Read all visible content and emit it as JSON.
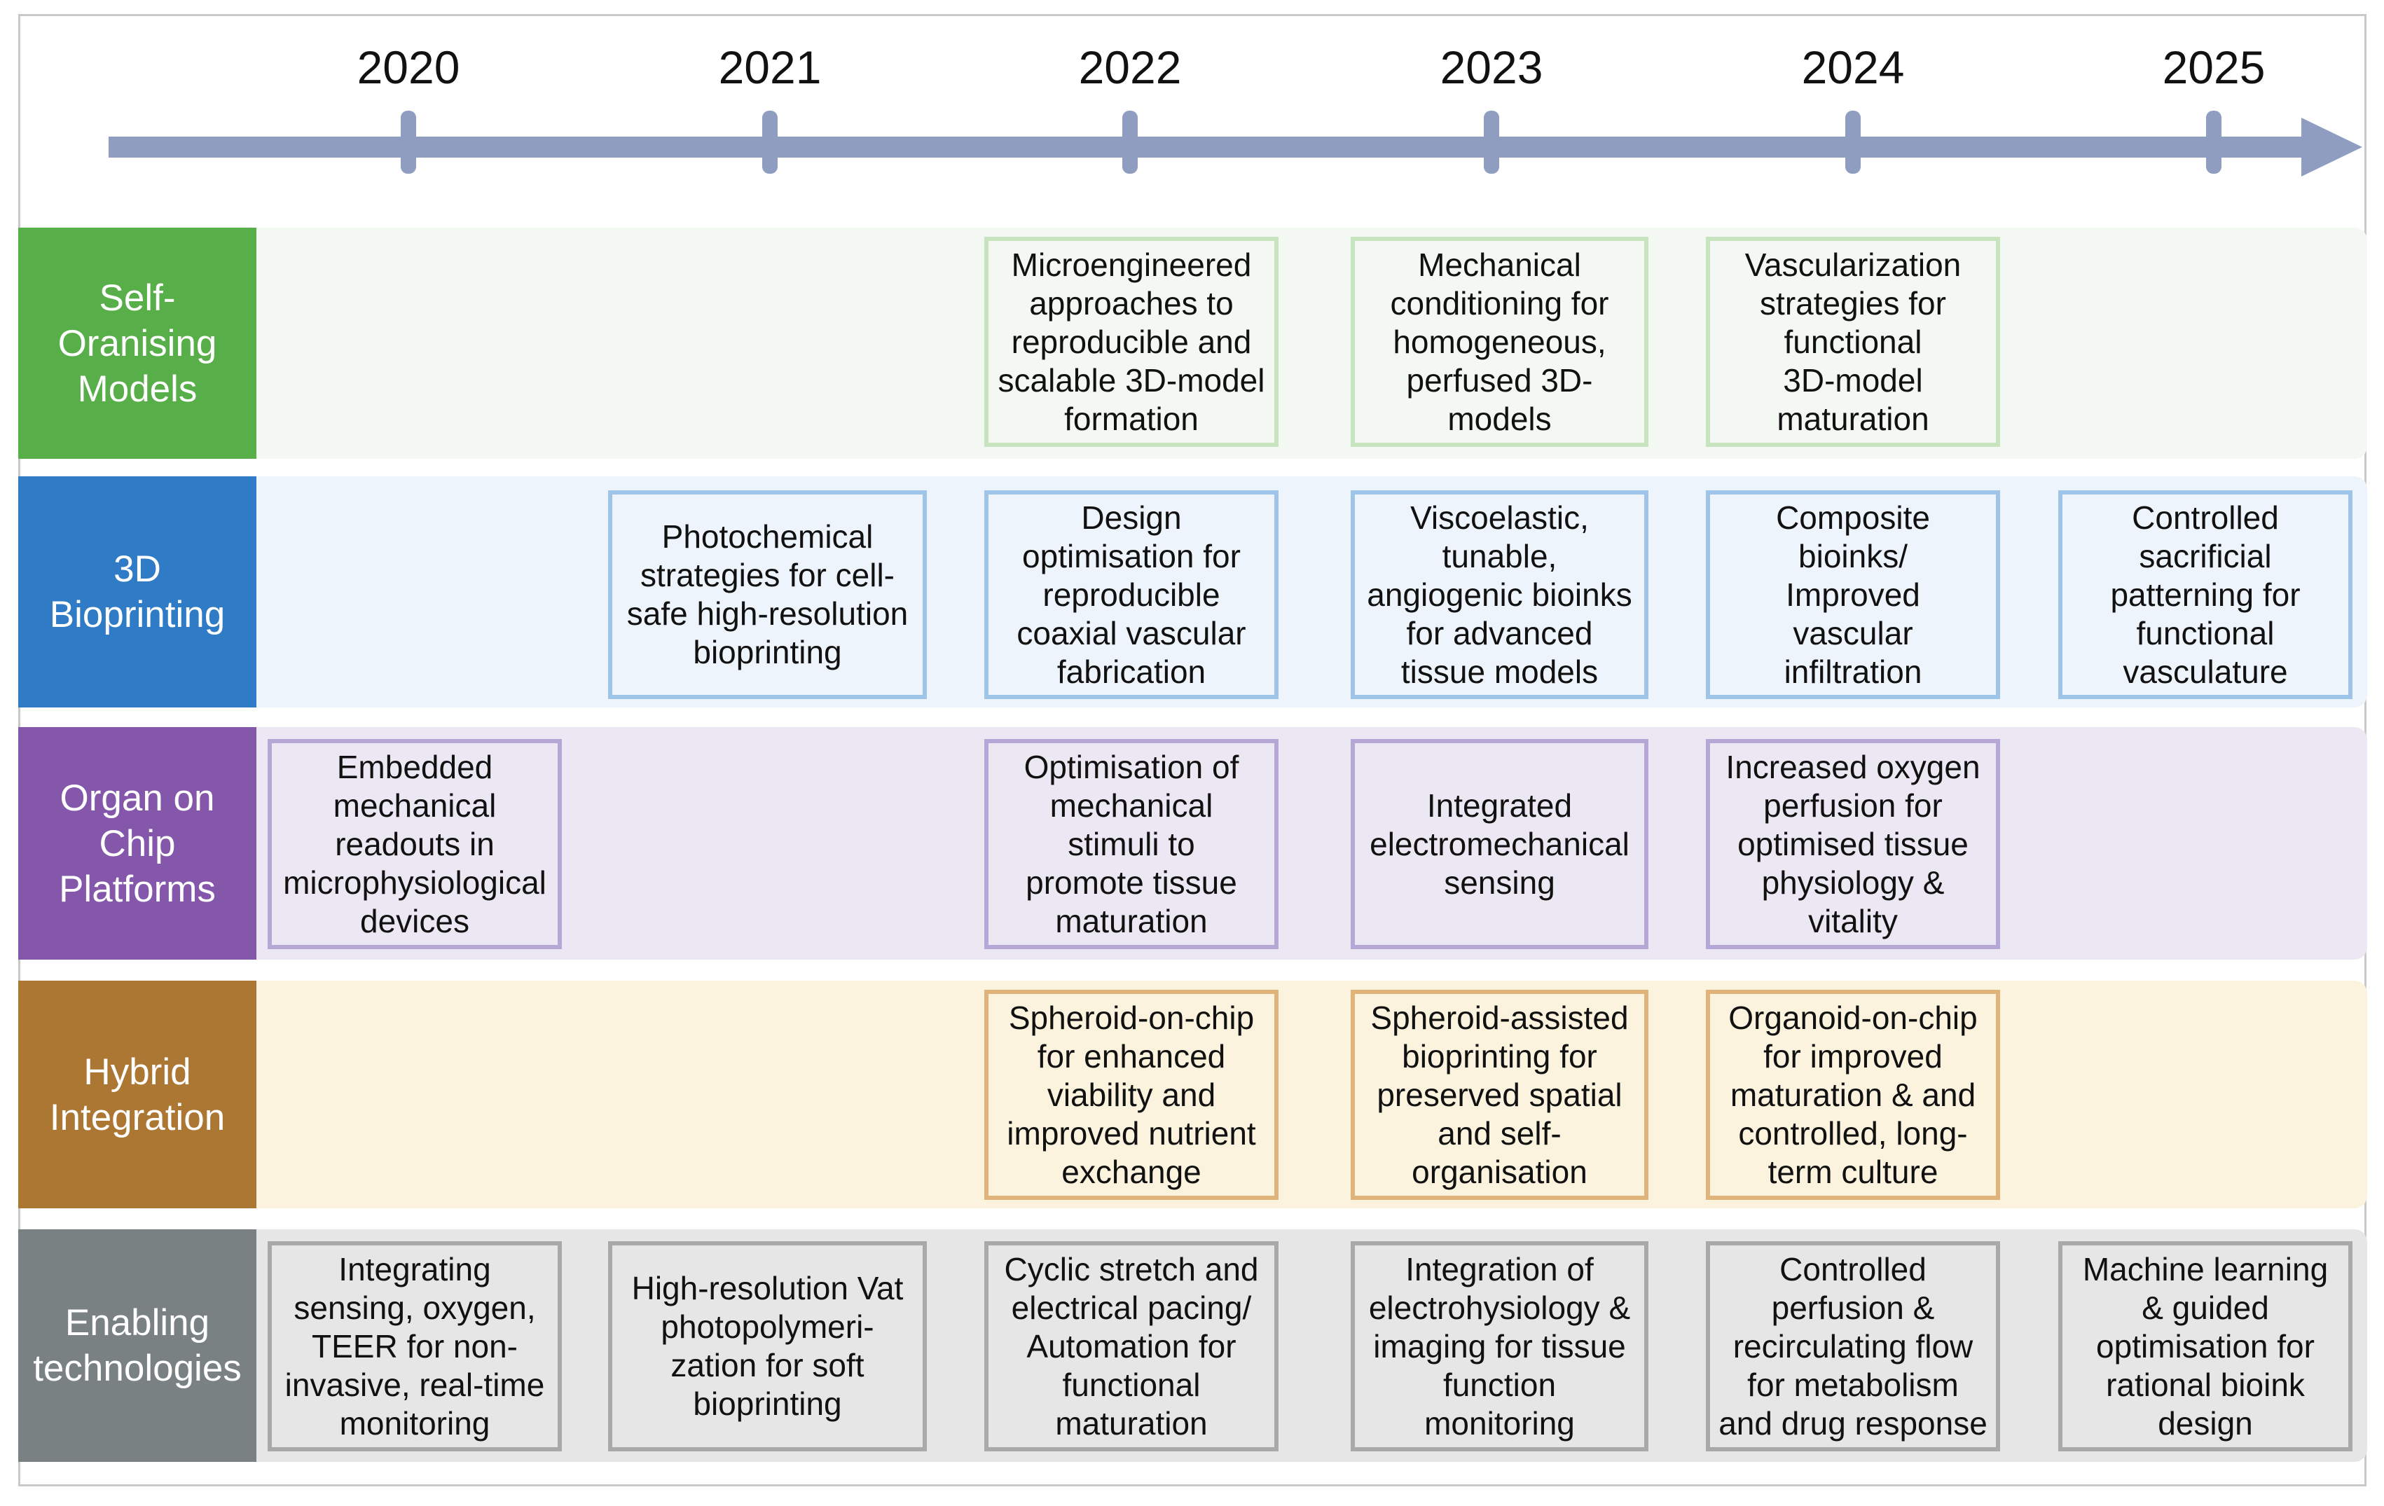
{
  "years": [
    "2020",
    "2021",
    "2022",
    "2023",
    "2024",
    "2025"
  ],
  "colors": {
    "arrow": "#8e9dc0",
    "frame": "#c9c9c9",
    "self_oranising": {
      "label_bg": "#58ae48",
      "band_bg": "#f4f8f2",
      "box_border": "#c8e4be"
    },
    "bioprinting": {
      "label_bg": "#2f7bc6",
      "band_bg": "#eef4fb",
      "box_border": "#9ec5e8"
    },
    "organ_on_chip": {
      "label_bg": "#8457ab",
      "band_bg": "#ece8f3",
      "box_border": "#b5a8d6"
    },
    "hybrid": {
      "label_bg": "#ab7732",
      "band_bg": "#fbf3dd",
      "box_border": "#e0b37a"
    },
    "enabling": {
      "label_bg": "#7a8183",
      "band_bg": "#e6e6e6",
      "box_border": "#a9a9a9"
    }
  },
  "rows": [
    {
      "id": "self-oranising",
      "label": "Self-\nOranising\nModels",
      "items": [
        {
          "year": "2022",
          "text": "Microengineered\napproaches to\nreproducible and\nscalable 3D-model\nformation"
        },
        {
          "year": "2023",
          "text": "Mechanical\nconditioning for\nhomogeneous,\nperfused 3D-\nmodels"
        },
        {
          "year": "2024",
          "text": "Vascularization\nstrategies for\nfunctional\n3D-model\nmaturation"
        }
      ]
    },
    {
      "id": "bioprinting",
      "label": "3D\nBioprinting",
      "items": [
        {
          "year": "2021",
          "text": "Photochemical\nstrategies for cell-\nsafe high-resolution\nbioprinting"
        },
        {
          "year": "2022",
          "text": "Design\noptimisation for\nreproducible\ncoaxial vascular\nfabrication"
        },
        {
          "year": "2023",
          "text": "Viscoelastic,\ntunable,\nangiogenic bioinks\nfor advanced\ntissue models"
        },
        {
          "year": "2024",
          "text": "Composite\nbioinks/\nImproved\nvascular\ninfiltration"
        },
        {
          "year": "2025",
          "text": "Controlled\nsacrificial\npatterning for\nfunctional\nvasculature"
        }
      ]
    },
    {
      "id": "organ-on-chip",
      "label": "Organ on\nChip\nPlatforms",
      "items": [
        {
          "year": "2020",
          "text": "Embedded\nmechanical\nreadouts in\nmicrophysiological\ndevices"
        },
        {
          "year": "2022",
          "text": "Optimisation of\nmechanical\nstimuli to\npromote tissue\nmaturation"
        },
        {
          "year": "2023",
          "text": "Integrated\nelectromechanical\nsensing"
        },
        {
          "year": "2024",
          "text": "Increased oxygen\nperfusion for\noptimised tissue\nphysiology &\nvitality"
        }
      ]
    },
    {
      "id": "hybrid",
      "label": "Hybrid\nIntegration",
      "items": [
        {
          "year": "2022",
          "text": "Spheroid-on-chip\nfor enhanced\nviability and\nimproved nutrient\nexchange"
        },
        {
          "year": "2023",
          "text": "Spheroid-assisted\nbioprinting for\npreserved spatial\nand self-\norganisation"
        },
        {
          "year": "2024",
          "text": "Organoid-on-chip\nfor improved\nmaturation & and\ncontrolled, long-\nterm culture"
        }
      ]
    },
    {
      "id": "enabling",
      "label": "Enabling\ntechnologies",
      "items": [
        {
          "year": "2020",
          "text": "Integrating\nsensing, oxygen,\nTEER for non-\ninvasive, real-time\nmonitoring"
        },
        {
          "year": "2021",
          "text": "High-resolution Vat\nphotopolymeri-\nzation for soft\nbioprinting"
        },
        {
          "year": "2022",
          "text": "Cyclic stretch and\nelectrical pacing/\nAutomation for\nfunctional\nmaturation"
        },
        {
          "year": "2023",
          "text": "Integration of\nelectrohysiology &\nimaging for tissue\nfunction\nmonitoring"
        },
        {
          "year": "2024",
          "text": "Controlled\nperfusion &\nrecirculating flow\nfor metabolism\nand drug response"
        },
        {
          "year": "2025",
          "text": "Machine learning\n& guided\noptimisation for\nrational bioink\ndesign"
        }
      ]
    }
  ]
}
